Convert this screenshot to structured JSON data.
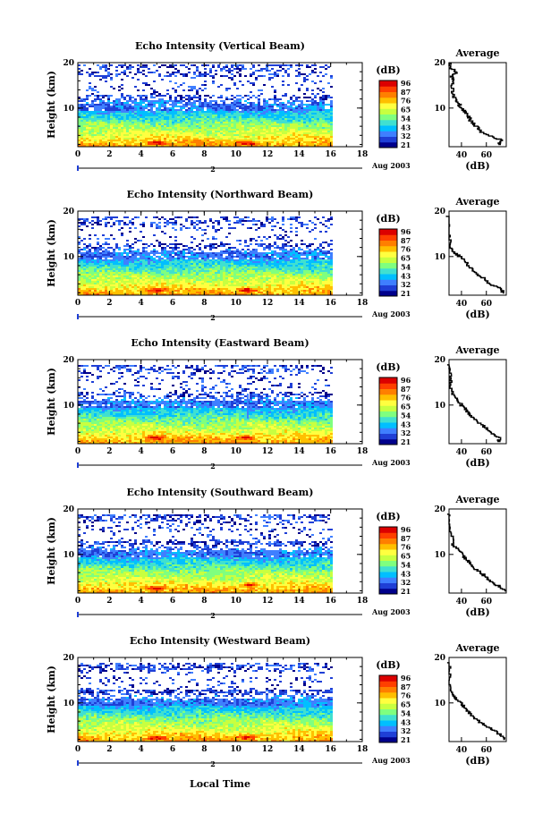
{
  "figure": {
    "xlabel": "Local Time",
    "date_label": "Aug 2003",
    "day_marker": "2",
    "colorbar_label": "(dB)",
    "colorbar_ticks": [
      "96",
      "87",
      "76",
      "65",
      "54",
      "43",
      "32",
      "21"
    ],
    "colorbar_colors": [
      "#00008b",
      "#1f3fd6",
      "#3f7fff",
      "#00bfff",
      "#40e0d0",
      "#7fff7f",
      "#c8ff40",
      "#ffff40",
      "#ffbf00",
      "#ff7f00",
      "#ff3f00",
      "#dc0000"
    ],
    "average_title": "Average",
    "average_xlabel": "(dB)",
    "average_xticks": [
      "40",
      "60"
    ],
    "ylabel": "Height (km)",
    "yticks": [
      "20",
      "10"
    ],
    "xticks": [
      "0",
      "2",
      "4",
      "6",
      "8",
      "10",
      "12",
      "14",
      "16",
      "18"
    ]
  },
  "chart_data": [
    {
      "type": "heatmap",
      "title": "Echo Intensity (Vertical Beam)",
      "x_range": [
        0,
        18
      ],
      "y_range": [
        1.5,
        20
      ],
      "data_end_hour": 16,
      "top_height_km": 19.5,
      "profile_db": [
        [
          2,
          70
        ],
        [
          3,
          73
        ],
        [
          4,
          62
        ],
        [
          5,
          55
        ],
        [
          6,
          52
        ],
        [
          7,
          48
        ],
        [
          8,
          46
        ],
        [
          9,
          44
        ],
        [
          10,
          40
        ],
        [
          11,
          38
        ],
        [
          12,
          35
        ],
        [
          14,
          33
        ],
        [
          16,
          33
        ],
        [
          17,
          32
        ],
        [
          18,
          36
        ],
        [
          19,
          31
        ],
        [
          20,
          30
        ]
      ],
      "hot_spots": [
        [
          4.9,
          2.5
        ],
        [
          10.6,
          2.5
        ]
      ],
      "spike": null
    },
    {
      "type": "heatmap",
      "title": "Echo Intensity (Northward Beam)",
      "x_range": [
        0,
        18
      ],
      "y_range": [
        1.5,
        20
      ],
      "data_end_hour": 16,
      "top_height_km": 18.5,
      "profile_db": [
        [
          2,
          74
        ],
        [
          3,
          72
        ],
        [
          4,
          62
        ],
        [
          5,
          60
        ],
        [
          6,
          54
        ],
        [
          7,
          50
        ],
        [
          8,
          46
        ],
        [
          9,
          43
        ],
        [
          10,
          39
        ],
        [
          11,
          34
        ],
        [
          12,
          32
        ],
        [
          14,
          31
        ],
        [
          16,
          29
        ],
        [
          18,
          29
        ],
        [
          19,
          28
        ]
      ],
      "hot_spots": [
        [
          4.9,
          2.8
        ],
        [
          10.6,
          2.8
        ]
      ],
      "spike": null
    },
    {
      "type": "heatmap",
      "title": "Echo Intensity (Eastward Beam)",
      "x_range": [
        0,
        18
      ],
      "y_range": [
        1.5,
        20
      ],
      "data_end_hour": 16,
      "top_height_km": 18.5,
      "profile_db": [
        [
          2,
          70
        ],
        [
          3,
          70
        ],
        [
          4,
          64
        ],
        [
          5,
          60
        ],
        [
          6,
          55
        ],
        [
          7,
          50
        ],
        [
          8,
          46
        ],
        [
          9,
          44
        ],
        [
          10,
          40
        ],
        [
          11,
          38
        ],
        [
          12,
          34
        ],
        [
          14,
          32
        ],
        [
          16,
          31
        ],
        [
          18,
          30
        ],
        [
          19,
          29
        ]
      ],
      "hot_spots": [
        [
          4.9,
          3.0
        ],
        [
          10.6,
          3.0
        ]
      ],
      "spike": 10.7
    },
    {
      "type": "heatmap",
      "title": "Echo Intensity (Southward Beam)",
      "x_range": [
        0,
        18
      ],
      "y_range": [
        1.5,
        20
      ],
      "data_end_hour": 16,
      "top_height_km": 18.5,
      "profile_db": [
        [
          2,
          75
        ],
        [
          3,
          71
        ],
        [
          4,
          64
        ],
        [
          5,
          60
        ],
        [
          6,
          56
        ],
        [
          7,
          50
        ],
        [
          8,
          47
        ],
        [
          9,
          44
        ],
        [
          10,
          41
        ],
        [
          11,
          38
        ],
        [
          12,
          34
        ],
        [
          14,
          32
        ],
        [
          16,
          31
        ],
        [
          18,
          30
        ],
        [
          19,
          29
        ]
      ],
      "hot_spots": [
        [
          4.9,
          2.8
        ],
        [
          10.8,
          3.5
        ]
      ],
      "spike": null
    },
    {
      "type": "heatmap",
      "title": "Echo Intensity (Westward Beam)",
      "x_range": [
        0,
        18
      ],
      "y_range": [
        1.5,
        20
      ],
      "data_end_hour": 16,
      "top_height_km": 18.5,
      "profile_db": [
        [
          2,
          74
        ],
        [
          3,
          72
        ],
        [
          4,
          66
        ],
        [
          5,
          60
        ],
        [
          6,
          54
        ],
        [
          7,
          50
        ],
        [
          8,
          46
        ],
        [
          9,
          43
        ],
        [
          10,
          40
        ],
        [
          11,
          36
        ],
        [
          12,
          33
        ],
        [
          14,
          31
        ],
        [
          16,
          30
        ],
        [
          18,
          30
        ],
        [
          19,
          29
        ]
      ],
      "hot_spots": [
        [
          4.9,
          2.5
        ],
        [
          10.6,
          2.7
        ]
      ],
      "spike": null
    }
  ]
}
